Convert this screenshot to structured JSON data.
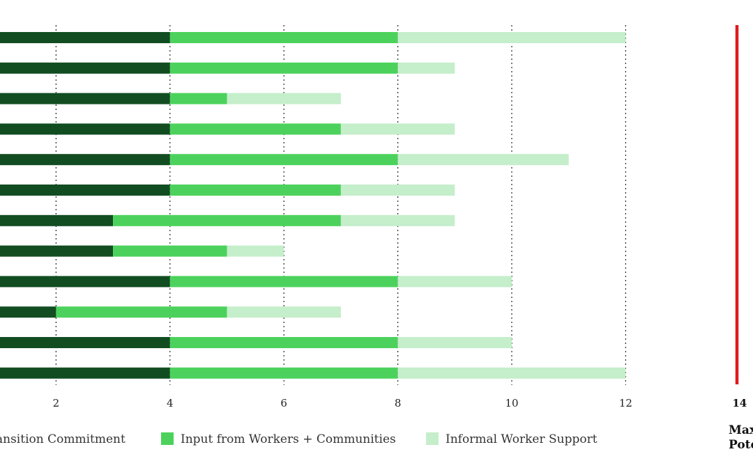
{
  "chart_data": {
    "type": "bar",
    "orientation": "horizontal",
    "stacked": true,
    "categories": [
      "",
      "",
      "",
      "",
      "",
      "",
      "",
      "",
      "",
      "",
      "",
      ""
    ],
    "series": [
      {
        "name": "Transition Commitment",
        "color": "#124d22",
        "values": [
          4,
          4,
          4,
          4,
          4,
          4,
          3,
          3,
          4,
          2,
          4,
          4
        ]
      },
      {
        "name": "Input from Workers + Communities",
        "color": "#4cd25c",
        "values": [
          4,
          4,
          1,
          3,
          4,
          3,
          4,
          2,
          4,
          3,
          4,
          4
        ]
      },
      {
        "name": "Informal Worker Support",
        "color": "#c5eecb",
        "values": [
          4,
          1,
          2,
          2,
          3,
          2,
          2,
          1,
          2,
          2,
          2,
          4
        ]
      }
    ],
    "xlim": [
      0,
      14
    ],
    "x_ticks": [
      "2",
      "4",
      "6",
      "8",
      "10",
      "12",
      "14"
    ],
    "grid": "vertical dotted lines at 2, 4, 6, 8, 10, 12",
    "legend": [
      "ansition Commitment",
      "Input from Workers + Communities",
      "Informal Worker Support"
    ],
    "legend_position": "bottom",
    "max_line": {
      "value": 14,
      "color": "#e0191b",
      "label_lines": [
        "Max",
        "Pote"
      ]
    }
  }
}
